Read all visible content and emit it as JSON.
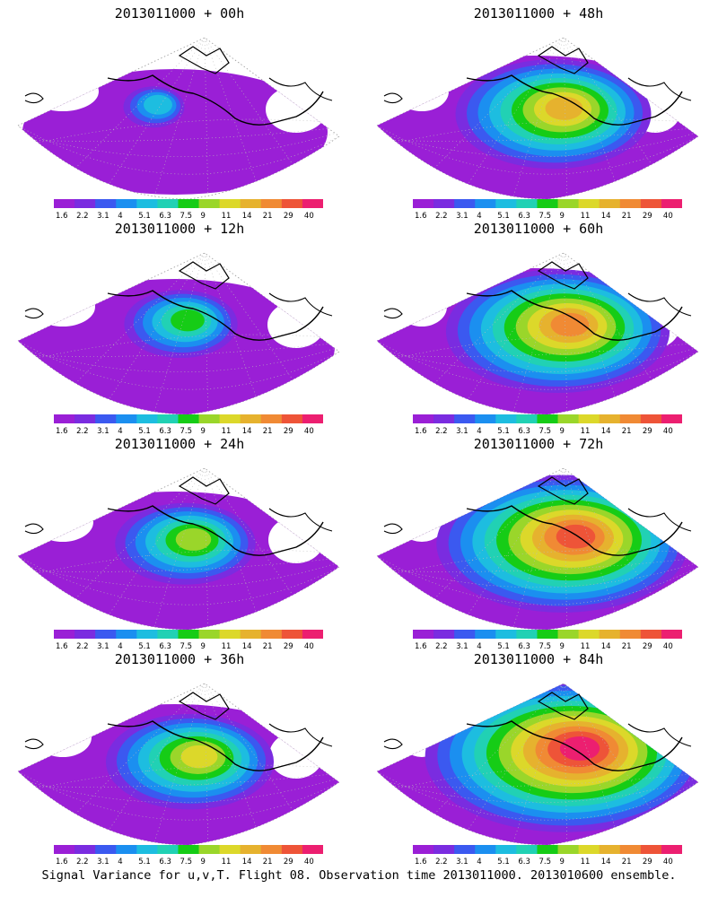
{
  "footer": "Signal Variance for u,v,T. Flight 08. Observation time 2013011000. 2013010600 ensemble.",
  "colorbar": {
    "labels": [
      "1.6",
      "2.2",
      "3.1",
      "4",
      "5.1",
      "6.3",
      "7.5",
      "9",
      "11",
      "14",
      "21",
      "29",
      "40"
    ],
    "colors": [
      "#9a1fd6",
      "#7a2ce0",
      "#3b59f0",
      "#1b8ff0",
      "#1dbde0",
      "#21d1b4",
      "#16cc16",
      "#9ad62a",
      "#dcd82a",
      "#e6b22e",
      "#f08a34",
      "#ee5438",
      "#ec1f70"
    ]
  },
  "panels": [
    {
      "title": "2013011000 + 00h",
      "level": 0
    },
    {
      "title": "2013011000 + 48h",
      "level": 5
    },
    {
      "title": "2013011000 + 12h",
      "level": 2
    },
    {
      "title": "2013011000 + 60h",
      "level": 6
    },
    {
      "title": "2013011000 + 24h",
      "level": 3
    },
    {
      "title": "2013011000 + 72h",
      "level": 7
    },
    {
      "title": "2013011000 + 36h",
      "level": 4
    },
    {
      "title": "2013011000 + 84h",
      "level": 8
    }
  ]
}
